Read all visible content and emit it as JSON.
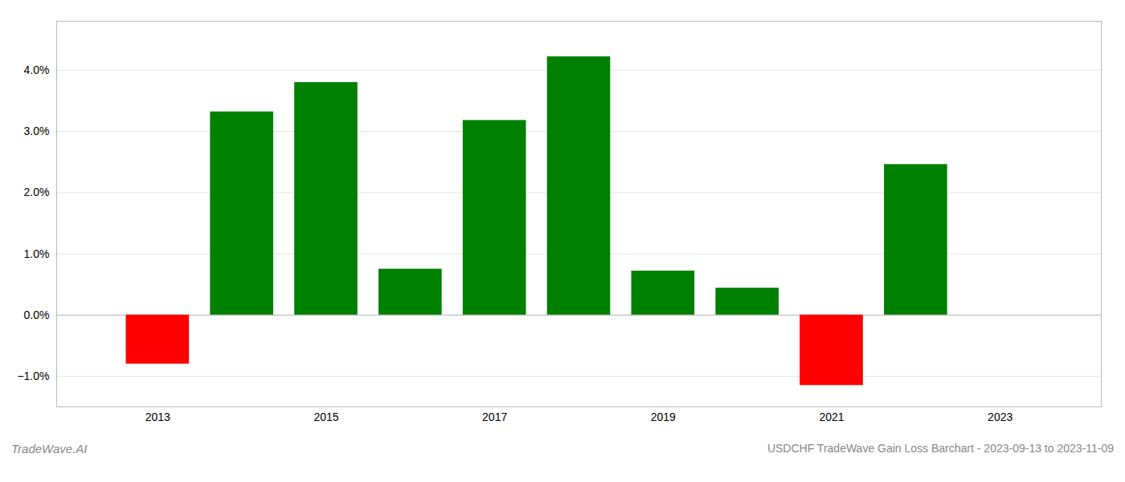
{
  "chart_data": {
    "type": "bar",
    "x": [
      2013,
      2014,
      2015,
      2016,
      2017,
      2018,
      2019,
      2020,
      2021,
      2022
    ],
    "values": [
      -0.8,
      3.32,
      3.8,
      0.75,
      3.18,
      4.22,
      0.72,
      0.44,
      -1.15,
      2.46
    ],
    "colors": [
      "#ff0000",
      "#008000",
      "#008000",
      "#008000",
      "#008000",
      "#008000",
      "#008000",
      "#008000",
      "#ff0000",
      "#008000"
    ],
    "xlim": [
      2011.8,
      2024.2
    ],
    "xticks": [
      2013,
      2015,
      2017,
      2019,
      2021,
      2023
    ],
    "ylim": [
      -1.5,
      4.8
    ],
    "yticks": [
      {
        "value": -1.0,
        "label": "−1.0%"
      },
      {
        "value": 0.0,
        "label": "0.0%"
      },
      {
        "value": 1.0,
        "label": "1.0%"
      },
      {
        "value": 2.0,
        "label": "2.0%"
      },
      {
        "value": 3.0,
        "label": "3.0%"
      },
      {
        "value": 4.0,
        "label": "4.0%"
      }
    ],
    "grid": true,
    "annotations": [
      "TradeWave.AI",
      "USDCHF TradeWave Gain Loss Barchart - 2023-09-13 to 2023-11-09"
    ]
  }
}
